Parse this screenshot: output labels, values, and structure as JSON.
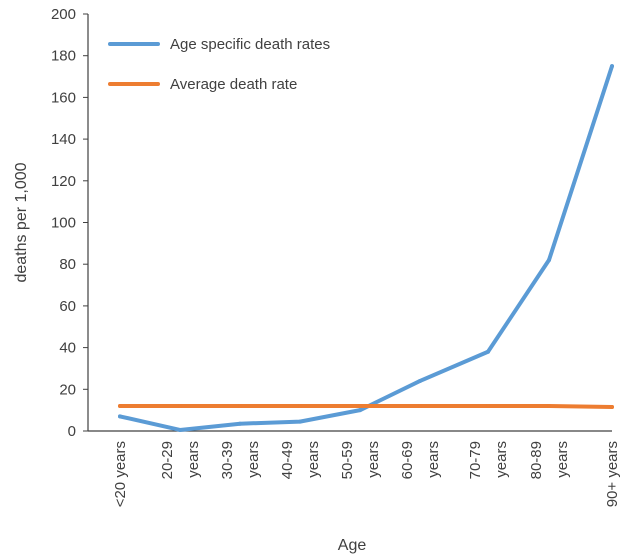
{
  "chart_data": {
    "type": "line",
    "title": "",
    "xlabel": "Age",
    "ylabel": "deaths per 1,000",
    "ylim": [
      0,
      200
    ],
    "yticks": [
      0,
      20,
      40,
      60,
      80,
      100,
      120,
      140,
      160,
      180,
      200
    ],
    "categories": [
      "<20 years",
      "20-29 years",
      "30-39 years",
      "40-49 years",
      "50-59 years",
      "60-69 years",
      "70-79 years",
      "80-89 years",
      "90+ years"
    ],
    "category_tick_lines": [
      [
        "<20 years"
      ],
      [
        "20-29",
        "years"
      ],
      [
        "30-39",
        "years"
      ],
      [
        "40-49",
        "years"
      ],
      [
        "50-59",
        "years"
      ],
      [
        "60-69",
        "years"
      ],
      [
        "70-79",
        "years"
      ],
      [
        "80-89",
        "years"
      ],
      [
        "90+ years"
      ]
    ],
    "grid": false,
    "legend_position": "top-left",
    "series": [
      {
        "name": "Age specific death rates",
        "color": "#5B9BD5",
        "values": [
          7,
          0.5,
          3.5,
          4.5,
          10,
          24,
          38,
          82,
          175
        ]
      },
      {
        "name": "Average death rate",
        "color": "#ED7D31",
        "values": [
          12,
          12,
          12,
          12,
          12,
          12,
          12,
          12,
          11.5
        ]
      }
    ]
  }
}
